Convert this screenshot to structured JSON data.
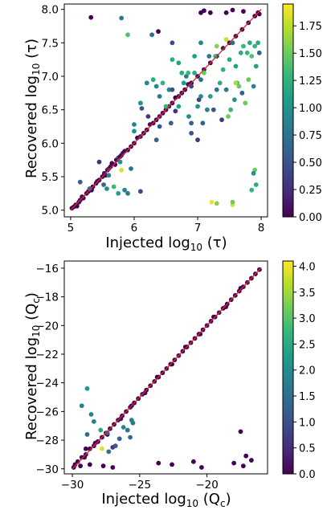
{
  "chart_data": [
    {
      "type": "scatter",
      "xlabel": "Injected log10(τ)",
      "ylabel": "Recovered log10(τ)",
      "xlim": [
        4.9,
        8.1
      ],
      "ylim": [
        4.9,
        8.08
      ],
      "xticks": [
        "5",
        "6",
        "7",
        "8"
      ],
      "yticks": [
        "5.0",
        "5.5",
        "6.0",
        "6.5",
        "7.0",
        "7.5",
        "8.0"
      ],
      "colorbar": {
        "colormap": "viridis",
        "range": [
          0,
          1.95
        ],
        "ticks": [
          "0.00",
          "0.25",
          "0.50",
          "0.75",
          "1.00",
          "1.25",
          "1.50",
          "1.75"
        ]
      },
      "identity_line": {
        "color": "#d62728",
        "from": [
          5.0,
          5.0
        ],
        "to": [
          8.0,
          8.0
        ]
      },
      "points": [
        [
          5.02,
          5.03,
          0.0
        ],
        [
          5.05,
          5.05,
          0.0
        ],
        [
          5.08,
          5.08,
          0.05
        ],
        [
          5.1,
          5.06,
          0.0
        ],
        [
          5.13,
          5.12,
          0.0
        ],
        [
          5.15,
          5.15,
          0.1
        ],
        [
          5.18,
          5.2,
          0.0
        ],
        [
          5.2,
          5.18,
          0.05
        ],
        [
          5.25,
          5.25,
          0.0
        ],
        [
          5.28,
          5.28,
          0.0
        ],
        [
          5.3,
          5.32,
          0.1
        ],
        [
          5.33,
          5.3,
          0.0
        ],
        [
          5.35,
          5.35,
          0.0
        ],
        [
          5.4,
          5.4,
          0.05
        ],
        [
          5.42,
          5.43,
          0.0
        ],
        [
          5.45,
          5.45,
          0.0
        ],
        [
          5.5,
          5.5,
          0.0
        ],
        [
          5.53,
          5.55,
          0.1
        ],
        [
          5.55,
          5.52,
          0.0
        ],
        [
          5.58,
          5.6,
          0.0
        ],
        [
          5.6,
          5.62,
          0.2
        ],
        [
          5.63,
          5.65,
          0.0
        ],
        [
          5.65,
          5.7,
          0.0
        ],
        [
          5.7,
          5.68,
          0.05
        ],
        [
          5.72,
          5.75,
          0.0
        ],
        [
          5.75,
          5.78,
          0.3
        ],
        [
          5.78,
          5.8,
          0.0
        ],
        [
          5.8,
          5.82,
          0.0
        ],
        [
          5.82,
          5.85,
          0.1
        ],
        [
          5.85,
          5.88,
          0.0
        ],
        [
          5.9,
          5.9,
          0.0
        ],
        [
          5.95,
          5.95,
          0.05
        ],
        [
          6.0,
          6.0,
          0.0
        ],
        [
          6.05,
          6.08,
          0.0
        ],
        [
          6.1,
          6.1,
          0.1
        ],
        [
          6.15,
          6.15,
          0.0
        ],
        [
          6.2,
          6.2,
          0.0
        ],
        [
          6.25,
          6.28,
          0.05
        ],
        [
          6.3,
          6.3,
          0.0
        ],
        [
          6.35,
          6.35,
          0.0
        ],
        [
          6.4,
          6.4,
          0.1
        ],
        [
          6.45,
          6.45,
          0.0
        ],
        [
          6.5,
          6.5,
          0.0
        ],
        [
          6.55,
          6.55,
          0.2
        ],
        [
          6.6,
          6.6,
          0.0
        ],
        [
          6.65,
          6.68,
          0.0
        ],
        [
          6.7,
          6.7,
          0.05
        ],
        [
          6.75,
          6.75,
          0.0
        ],
        [
          6.8,
          6.8,
          0.0
        ],
        [
          6.85,
          6.88,
          0.1
        ],
        [
          6.9,
          6.9,
          0.0
        ],
        [
          7.0,
          7.0,
          0.0
        ],
        [
          7.1,
          7.1,
          0.05
        ],
        [
          7.2,
          7.2,
          0.0
        ],
        [
          7.3,
          7.3,
          0.0
        ],
        [
          7.4,
          7.42,
          0.1
        ],
        [
          7.5,
          7.5,
          0.0
        ],
        [
          7.6,
          7.6,
          0.0
        ],
        [
          7.7,
          7.7,
          0.0
        ],
        [
          7.8,
          7.8,
          0.05
        ],
        [
          7.9,
          7.9,
          0.0
        ],
        [
          7.95,
          7.95,
          0.0
        ],
        [
          5.15,
          5.42,
          0.6
        ],
        [
          5.3,
          5.32,
          0.7
        ],
        [
          5.45,
          5.72,
          0.3
        ],
        [
          5.52,
          5.38,
          0.65
        ],
        [
          5.57,
          5.32,
          1.0
        ],
        [
          5.6,
          5.52,
          0.9
        ],
        [
          5.68,
          5.35,
          1.3
        ],
        [
          5.75,
          5.25,
          1.1
        ],
        [
          5.8,
          5.6,
          1.85
        ],
        [
          5.85,
          5.3,
          0.85
        ],
        [
          5.9,
          5.25,
          0.8
        ],
        [
          5.95,
          5.62,
          0.75
        ],
        [
          6.1,
          5.28,
          0.4
        ],
        [
          5.78,
          5.72,
          1.0
        ],
        [
          5.32,
          7.88,
          0.0
        ],
        [
          5.8,
          7.87,
          0.8
        ],
        [
          5.9,
          7.62,
          1.4
        ],
        [
          6.28,
          7.62,
          0.7
        ],
        [
          6.38,
          7.67,
          0.0
        ],
        [
          6.6,
          7.5,
          0.45
        ],
        [
          6.0,
          6.28,
          0.9
        ],
        [
          6.0,
          6.18,
          1.0
        ],
        [
          6.2,
          6.9,
          0.9
        ],
        [
          6.1,
          6.6,
          1.0
        ],
        [
          6.12,
          6.52,
          0.5
        ],
        [
          6.22,
          6.4,
          0.3
        ],
        [
          6.3,
          6.95,
          1.2
        ],
        [
          6.35,
          6.85,
          0.9
        ],
        [
          6.4,
          6.7,
          0.8
        ],
        [
          6.45,
          6.9,
          1.25
        ],
        [
          6.5,
          6.55,
          1.3
        ],
        [
          6.55,
          6.8,
          0.9
        ],
        [
          6.58,
          6.3,
          0.6
        ],
        [
          6.6,
          6.8,
          0.5
        ],
        [
          6.65,
          6.48,
          0.3
        ],
        [
          6.7,
          6.55,
          1.1
        ],
        [
          6.75,
          7.05,
          1.2
        ],
        [
          6.78,
          6.9,
          1.1
        ],
        [
          6.82,
          7.0,
          0.8
        ],
        [
          6.86,
          6.4,
          0.95
        ],
        [
          6.9,
          6.3,
          0.6
        ],
        [
          6.9,
          6.85,
          0.4
        ],
        [
          6.95,
          7.05,
          1.2
        ],
        [
          7.0,
          6.55,
          1.0
        ],
        [
          7.05,
          6.95,
          0.7
        ],
        [
          7.08,
          6.3,
          0.6
        ],
        [
          7.1,
          7.05,
          1.5
        ],
        [
          7.15,
          6.5,
          0.9
        ],
        [
          7.18,
          7.3,
          0.8
        ],
        [
          7.2,
          6.7,
          1.1
        ],
        [
          7.25,
          6.5,
          0.5
        ],
        [
          7.28,
          7.3,
          1.3
        ],
        [
          7.3,
          6.8,
          0.8
        ],
        [
          7.35,
          6.9,
          1.2
        ],
        [
          7.38,
          6.35,
          0.3
        ],
        [
          7.4,
          7.1,
          1.25
        ],
        [
          7.45,
          6.8,
          0.8
        ],
        [
          7.48,
          6.4,
          1.5
        ],
        [
          7.5,
          7.25,
          1.2
        ],
        [
          7.52,
          6.5,
          1.3
        ],
        [
          7.55,
          7.5,
          0.7
        ],
        [
          7.58,
          6.65,
          1.0
        ],
        [
          7.6,
          7.15,
          1.1
        ],
        [
          7.62,
          6.9,
          1.2
        ],
        [
          7.65,
          6.85,
          1.5
        ],
        [
          7.68,
          7.35,
          1.2
        ],
        [
          7.7,
          6.75,
          0.6
        ],
        [
          7.72,
          7.45,
          1.3
        ],
        [
          7.75,
          6.6,
          1.5
        ],
        [
          7.78,
          7.35,
          1.3
        ],
        [
          7.8,
          6.95,
          1.5
        ],
        [
          7.82,
          7.5,
          1.2
        ],
        [
          7.85,
          7.3,
          1.4
        ],
        [
          7.88,
          6.85,
          0.9
        ],
        [
          7.9,
          7.45,
          1.3
        ],
        [
          7.92,
          7.15,
          1.1
        ],
        [
          7.95,
          7.5,
          1.2
        ],
        [
          7.97,
          7.35,
          0.6
        ],
        [
          6.6,
          7.25,
          1.2
        ],
        [
          6.7,
          7.2,
          1.1
        ],
        [
          6.85,
          7.05,
          1.3
        ],
        [
          6.95,
          7.3,
          1.1
        ],
        [
          7.02,
          6.65,
          0.4
        ],
        [
          7.05,
          7.5,
          0.9
        ],
        [
          6.35,
          6.05,
          0.6
        ],
        [
          6.4,
          6.25,
          0.5
        ],
        [
          7.05,
          7.95,
          0.0
        ],
        [
          7.1,
          7.98,
          0.0
        ],
        [
          7.2,
          7.95,
          0.0
        ],
        [
          7.45,
          7.95,
          0.0
        ],
        [
          7.55,
          7.99,
          0.0
        ],
        [
          7.72,
          7.97,
          0.0
        ],
        [
          7.97,
          7.93,
          0.0
        ],
        [
          7.3,
          7.45,
          1.6
        ],
        [
          7.45,
          7.55,
          1.8
        ],
        [
          7.22,
          5.12,
          1.9
        ],
        [
          7.55,
          5.08,
          1.85
        ],
        [
          7.85,
          5.3,
          1.3
        ],
        [
          7.92,
          5.38,
          1.2
        ],
        [
          7.9,
          5.6,
          1.5
        ],
        [
          7.88,
          5.55,
          1.0
        ],
        [
          7.3,
          5.1,
          1.6
        ],
        [
          7.55,
          5.12,
          1.5
        ],
        [
          7.6,
          6.9,
          1.7
        ],
        [
          7.05,
          6.7,
          0.9
        ],
        [
          7.0,
          6.05,
          0.3
        ],
        [
          6.9,
          6.15,
          0.5
        ]
      ]
    },
    {
      "type": "scatter",
      "xlabel": "Injected log10(Qc)",
      "ylabel": "Recovered log10(Qc)",
      "xlim": [
        -30.6,
        -15.5
      ],
      "ylim": [
        -30.35,
        -15.5
      ],
      "xticks": [
        "−30",
        "−25",
        "−20"
      ],
      "yticks": [
        "−30",
        "−28",
        "−26",
        "−24",
        "−22",
        "−20",
        "−18",
        "−16"
      ],
      "colorbar": {
        "colormap": "viridis",
        "range": [
          0,
          4.1
        ],
        "ticks": [
          "0.0",
          "0.5",
          "1.0",
          "1.5",
          "2.0",
          "2.5",
          "3.0",
          "3.5",
          "4.0"
        ]
      },
      "identity_line": {
        "color": "#d62728",
        "from": [
          -30,
          -30
        ],
        "to": [
          -16,
          -16
        ]
      },
      "points": [
        [
          -29.9,
          -29.9,
          0.0
        ],
        [
          -29.6,
          -29.5,
          0.0
        ],
        [
          -29.3,
          -29.2,
          0.1
        ],
        [
          -29.0,
          -29.0,
          0.0
        ],
        [
          -28.7,
          -28.6,
          0.0
        ],
        [
          -28.4,
          -28.4,
          0.1
        ],
        [
          -28.1,
          -28.1,
          0.0
        ],
        [
          -27.8,
          -27.8,
          0.0
        ],
        [
          -27.5,
          -27.5,
          0.2
        ],
        [
          -27.2,
          -27.2,
          0.0
        ],
        [
          -26.9,
          -26.9,
          0.0
        ],
        [
          -26.6,
          -26.6,
          0.1
        ],
        [
          -26.3,
          -26.3,
          0.0
        ],
        [
          -26.0,
          -26.0,
          0.0
        ],
        [
          -25.7,
          -25.7,
          0.1
        ],
        [
          -25.4,
          -25.4,
          0.0
        ],
        [
          -25.1,
          -25.1,
          0.0
        ],
        [
          -24.8,
          -24.8,
          0.2
        ],
        [
          -24.5,
          -24.5,
          0.0
        ],
        [
          -24.2,
          -24.2,
          0.0
        ],
        [
          -23.9,
          -23.9,
          0.1
        ],
        [
          -23.6,
          -23.6,
          0.0
        ],
        [
          -23.3,
          -23.3,
          0.0
        ],
        [
          -23.0,
          -23.0,
          0.1
        ],
        [
          -22.7,
          -22.7,
          0.0
        ],
        [
          -22.4,
          -22.4,
          0.0
        ],
        [
          -22.1,
          -22.1,
          0.2
        ],
        [
          -21.8,
          -21.8,
          0.0
        ],
        [
          -21.5,
          -21.5,
          0.0
        ],
        [
          -21.2,
          -21.2,
          0.1
        ],
        [
          -20.9,
          -20.9,
          0.0
        ],
        [
          -20.6,
          -20.6,
          0.0
        ],
        [
          -20.3,
          -20.3,
          0.0
        ],
        [
          -20.0,
          -20.0,
          0.1
        ],
        [
          -19.7,
          -19.7,
          0.0
        ],
        [
          -19.4,
          -19.4,
          0.0
        ],
        [
          -19.1,
          -19.1,
          0.2
        ],
        [
          -18.8,
          -18.8,
          0.0
        ],
        [
          -18.5,
          -18.5,
          0.0
        ],
        [
          -18.2,
          -18.2,
          0.1
        ],
        [
          -17.9,
          -17.9,
          0.0
        ],
        [
          -17.6,
          -17.6,
          0.0
        ],
        [
          -17.3,
          -17.3,
          0.0
        ],
        [
          -17.0,
          -17.0,
          0.1
        ],
        [
          -16.7,
          -16.7,
          0.0
        ],
        [
          -16.4,
          -16.4,
          0.0
        ],
        [
          -16.1,
          -16.1,
          0.0
        ],
        [
          -29.8,
          -29.7,
          0.0
        ],
        [
          -29.1,
          -29.2,
          0.0
        ],
        [
          -28.3,
          -28.2,
          0.0
        ],
        [
          -27.4,
          -27.6,
          0.0
        ],
        [
          -26.4,
          -26.5,
          0.0
        ],
        [
          -25.6,
          -25.6,
          0.0
        ],
        [
          -24.6,
          -24.7,
          0.0
        ],
        [
          -23.7,
          -23.6,
          0.0
        ],
        [
          -22.6,
          -22.7,
          0.0
        ],
        [
          -21.6,
          -21.5,
          0.0
        ],
        [
          -20.5,
          -20.6,
          0.0
        ],
        [
          -19.5,
          -19.4,
          0.0
        ],
        [
          -18.6,
          -18.7,
          0.0
        ],
        [
          -17.5,
          -17.4,
          0.0
        ],
        [
          -29.3,
          -25.6,
          1.8
        ],
        [
          -28.9,
          -24.4,
          2.2
        ],
        [
          -28.6,
          -26.2,
          1.9
        ],
        [
          -28.4,
          -26.7,
          1.7
        ],
        [
          -27.9,
          -27.3,
          2.5
        ],
        [
          -27.8,
          -28.6,
          3.9
        ],
        [
          -27.4,
          -27.5,
          1.2
        ],
        [
          -27.3,
          -28.8,
          1.5
        ],
        [
          -27.0,
          -28.5,
          0.6
        ],
        [
          -26.8,
          -28.4,
          1.2
        ],
        [
          -26.5,
          -27.9,
          1.3
        ],
        [
          -25.9,
          -27.3,
          1.6
        ],
        [
          -25.7,
          -27.8,
          1.4
        ],
        [
          -25.6,
          -26.6,
          1.8
        ],
        [
          -25.5,
          -26.8,
          1.6
        ],
        [
          -26.2,
          -27.1,
          1.9
        ],
        [
          -28.9,
          -27.6,
          1.4
        ],
        [
          -28.7,
          -29.7,
          0.0
        ],
        [
          -28.1,
          -28.1,
          0.0
        ],
        [
          -27.7,
          -29.8,
          0.0
        ],
        [
          -27.0,
          -29.9,
          0.0
        ],
        [
          -23.6,
          -29.6,
          0.0
        ],
        [
          -22.6,
          -29.7,
          0.0
        ],
        [
          -21.0,
          -29.5,
          0.0
        ],
        [
          -20.4,
          -29.9,
          0.0
        ],
        [
          -18.0,
          -29.6,
          0.0
        ],
        [
          -17.5,
          -27.4,
          0.0
        ],
        [
          -17.1,
          -29.1,
          0.0
        ],
        [
          -16.7,
          -29.4,
          0.0
        ],
        [
          -17.3,
          -29.8,
          0.0
        ],
        [
          -29.4,
          -29.8,
          0.0
        ],
        [
          -29.0,
          -28.6,
          0.0
        ]
      ]
    }
  ]
}
